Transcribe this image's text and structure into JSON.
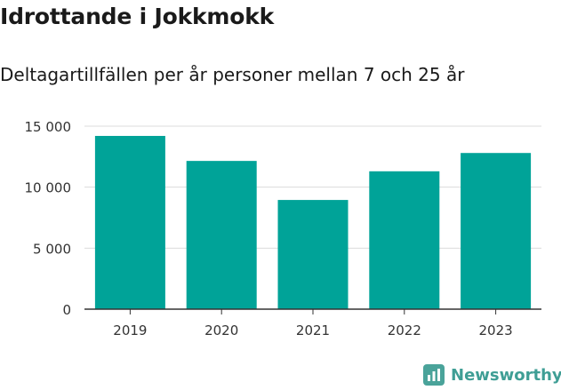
{
  "chart_data": {
    "type": "bar",
    "title": "Idrottande i Jokkmokk",
    "subtitle": "Deltagartillfällen per år personer mellan 7 och 25 år",
    "categories": [
      "2019",
      "2020",
      "2021",
      "2022",
      "2023"
    ],
    "values": [
      14200,
      12150,
      8950,
      11300,
      12800
    ],
    "ylim": [
      0,
      15000
    ],
    "yticks": [
      0,
      5000,
      10000,
      15000
    ],
    "ytick_labels": [
      "0",
      "5 000",
      "10 000",
      "15 000"
    ],
    "bar_color": "#00a398",
    "grid": true
  },
  "brand": {
    "name": "Newsworthy",
    "color": "#3f9e95"
  }
}
